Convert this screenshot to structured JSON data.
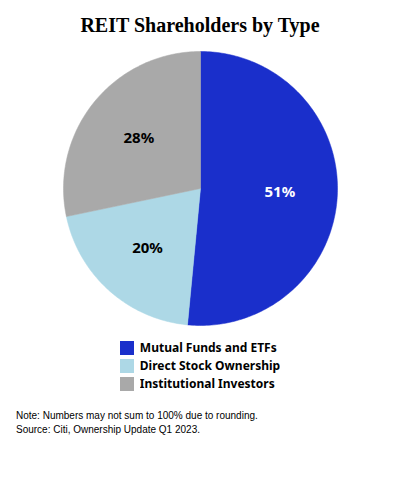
{
  "chart_data": {
    "type": "pie",
    "title": "REIT Shareholders by Type",
    "categories": [
      "Mutual Funds and ETFs",
      "Direct Stock Ownership",
      "Institutional Investors"
    ],
    "values": [
      51,
      20,
      28
    ],
    "value_labels": [
      "51%",
      "20%",
      "28%"
    ],
    "colors": [
      "#1a2fcb",
      "#add8e6",
      "#a9a9a9"
    ],
    "data_labels": true,
    "legend": "bottom",
    "annotations": [
      "Note: Numbers may not sum to 100% due to rounding.",
      "Source: Citi, Ownership Update Q1 2023."
    ]
  }
}
